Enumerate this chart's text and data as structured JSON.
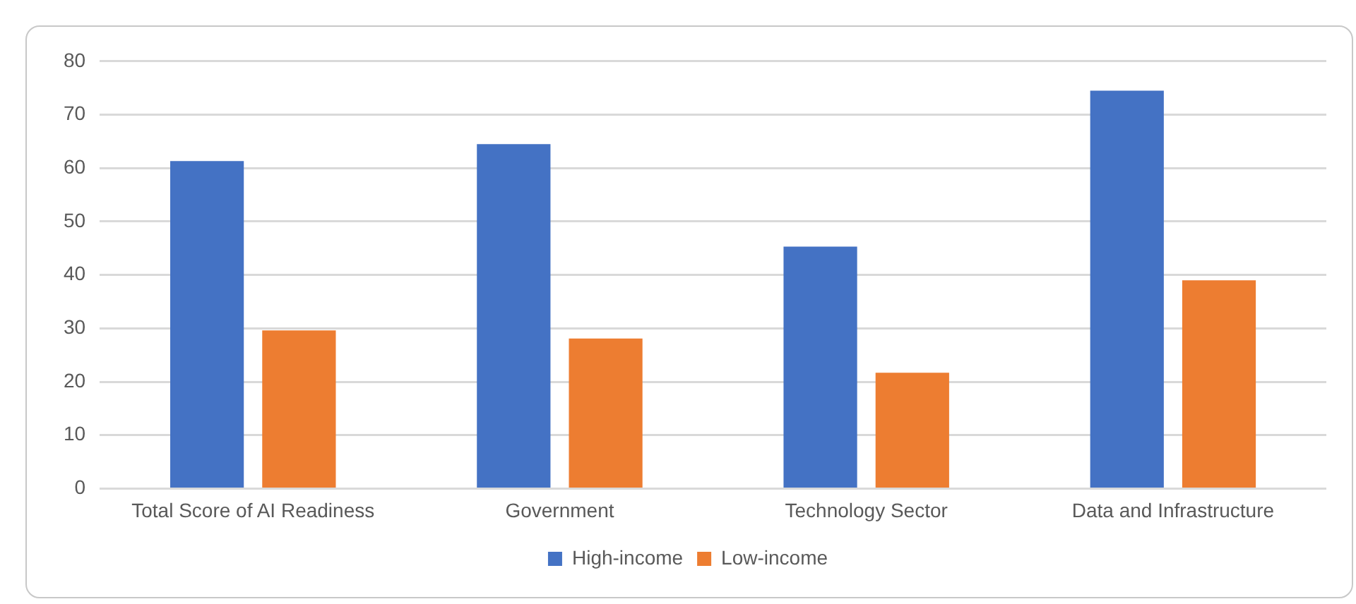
{
  "chart_data": {
    "type": "bar",
    "categories": [
      "Total Score of AI Readiness",
      "Government",
      "Technology Sector",
      "Data and Infrastructure"
    ],
    "series": [
      {
        "name": "High-income",
        "color": "#4472c4",
        "values": [
          61.3,
          64.5,
          45.3,
          74.5
        ]
      },
      {
        "name": "Low-income",
        "color": "#ed7d31",
        "values": [
          29.6,
          28.1,
          21.7,
          39.0
        ]
      }
    ],
    "ylim": [
      0,
      80
    ],
    "yticks": [
      0,
      10,
      20,
      30,
      40,
      50,
      60,
      70,
      80
    ],
    "grid": "y",
    "legend": "bottom"
  }
}
